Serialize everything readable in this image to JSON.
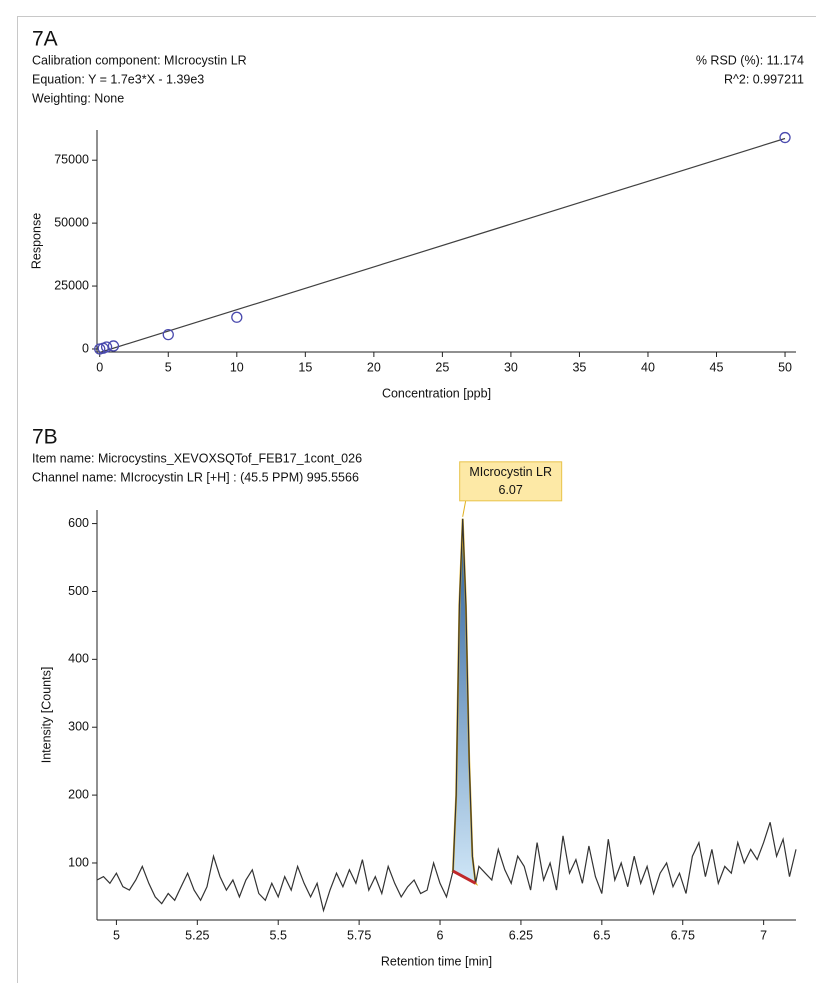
{
  "chart_data": [
    {
      "type": "scatter",
      "title": "7A",
      "info": [
        "Calibration component: MIcrocystin LR",
        "Equation: Y = 1.7e3*X - 1.39e3",
        "Weighting: None"
      ],
      "stats": [
        "% RSD (%): 11.174",
        "R^2: 0.997211"
      ],
      "xlabel": "Concentration [ppb]",
      "ylabel": "Response",
      "x": [
        0,
        0.25,
        0.5,
        1,
        5,
        10,
        50
      ],
      "values": [
        0,
        300,
        800,
        1200,
        5700,
        12600,
        84000
      ],
      "color": "#4a4aae",
      "fit": {
        "x": [
          0,
          50
        ],
        "values": [
          -1390,
          83610
        ],
        "color": "#404040"
      },
      "xlim": [
        -0.2,
        50.8
      ],
      "ylim": [
        -1200,
        87000
      ],
      "xticks": [
        0,
        5,
        10,
        15,
        20,
        25,
        30,
        35,
        40,
        45,
        50
      ],
      "yticks": [
        0,
        25000,
        50000,
        75000
      ]
    },
    {
      "type": "line",
      "title": "7B",
      "info": [
        "Item name: Microcystins_XEVOXSQTof_FEB17_1cont_026",
        "Channel name: MIcrocystin LR [+H] : (45.5 PPM) 995.5566"
      ],
      "xlabel": "Retention time [min]",
      "ylabel": "Intensity [Counts]",
      "x": [
        4.94,
        4.96,
        4.98,
        5.0,
        5.02,
        5.04,
        5.06,
        5.08,
        5.1,
        5.12,
        5.14,
        5.16,
        5.18,
        5.2,
        5.22,
        5.24,
        5.26,
        5.28,
        5.3,
        5.32,
        5.34,
        5.36,
        5.38,
        5.4,
        5.42,
        5.44,
        5.46,
        5.48,
        5.5,
        5.52,
        5.54,
        5.56,
        5.58,
        5.6,
        5.62,
        5.64,
        5.66,
        5.68,
        5.7,
        5.72,
        5.74,
        5.76,
        5.78,
        5.8,
        5.82,
        5.84,
        5.86,
        5.88,
        5.9,
        5.92,
        5.94,
        5.96,
        5.98,
        6.0,
        6.02,
        6.04,
        6.05,
        6.06,
        6.07,
        6.08,
        6.09,
        6.1,
        6.11,
        6.12,
        6.14,
        6.16,
        6.18,
        6.2,
        6.22,
        6.24,
        6.26,
        6.28,
        6.3,
        6.32,
        6.34,
        6.36,
        6.38,
        6.4,
        6.42,
        6.44,
        6.46,
        6.48,
        6.5,
        6.52,
        6.54,
        6.56,
        6.58,
        6.6,
        6.62,
        6.64,
        6.66,
        6.68,
        6.7,
        6.72,
        6.74,
        6.76,
        6.78,
        6.8,
        6.82,
        6.84,
        6.86,
        6.88,
        6.9,
        6.92,
        6.94,
        6.96,
        6.98,
        7.0,
        7.02,
        7.04,
        7.06,
        7.08,
        7.1
      ],
      "values": [
        75,
        80,
        70,
        85,
        65,
        60,
        75,
        95,
        70,
        50,
        40,
        55,
        45,
        65,
        85,
        60,
        45,
        65,
        110,
        80,
        60,
        75,
        50,
        75,
        90,
        55,
        45,
        70,
        50,
        80,
        60,
        95,
        70,
        50,
        70,
        30,
        60,
        85,
        65,
        90,
        70,
        105,
        60,
        80,
        55,
        95,
        70,
        50,
        65,
        75,
        55,
        60,
        100,
        70,
        50,
        88,
        200,
        480,
        607,
        480,
        250,
        110,
        70,
        95,
        85,
        75,
        120,
        90,
        70,
        110,
        95,
        60,
        130,
        75,
        100,
        60,
        140,
        85,
        105,
        70,
        125,
        80,
        55,
        135,
        75,
        100,
        65,
        110,
        70,
        95,
        55,
        85,
        100,
        65,
        85,
        55,
        110,
        130,
        80,
        120,
        70,
        95,
        85,
        130,
        100,
        120,
        105,
        130,
        160,
        110,
        135,
        80,
        120
      ],
      "color": "#333333",
      "baseline": {
        "x": [
          6.04,
          6.11
        ],
        "values": [
          88,
          70
        ],
        "color": "#c0282a"
      },
      "annotation": {
        "label": "MIcrocystin LR",
        "x": 6.07,
        "y": 607
      },
      "xlim": [
        4.94,
        7.1
      ],
      "ylim": [
        16,
        620
      ],
      "xticks": [
        5,
        5.25,
        5.5,
        5.75,
        6,
        6.25,
        6.5,
        6.75,
        7
      ],
      "yticks": [
        100,
        200,
        300,
        400,
        500,
        600
      ]
    }
  ]
}
